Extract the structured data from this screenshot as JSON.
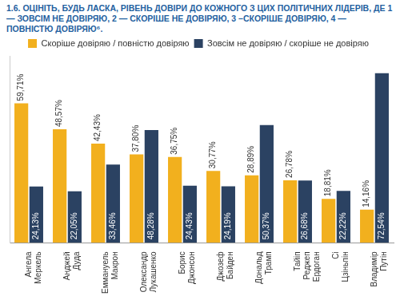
{
  "chart_data": {
    "type": "bar",
    "title": "1.6. ОЦІНІТЬ, БУДЬ ЛАСКА, РІВЕНЬ ДОВІРИ ДО КОЖНОГО З ЦИХ ПОЛІТИЧНИХ ЛІДЕРІВ, ДЕ 1 — ЗОВСІМ НЕ ДОВІРЯЮ, 2 — СКОРІШЕ НЕ ДОВІРЯЮ, 3 –СКОРІШЕ ДОВІРЯЮ, 4 — ПОВНІСТЮ ДОВІРЯЮ⁶.",
    "categories": [
      "Ангела Меркель",
      "Анджей Дуда",
      "Еммануель Макрон",
      "Олександр Лукашенко",
      "Борис Джонсон",
      "Джозеф Байден",
      "Дональд Трамп",
      "Тайіп Реджеп Ердоган",
      "Сі Цзіньпін",
      "Владимір Путін"
    ],
    "series": [
      {
        "name": "Скоріше довіряю / повністю довіряю",
        "color": "#f2b01e",
        "values": [
          59.71,
          48.57,
          42.43,
          37.8,
          36.75,
          30.77,
          28.89,
          26.78,
          18.81,
          14.16
        ],
        "value_labels": [
          "59,71%",
          "48,57%",
          "42,43%",
          "37,80%",
          "36,75%",
          "30,77%",
          "28,89%",
          "26,78%",
          "18,81%",
          "14,16%"
        ]
      },
      {
        "name": "Зовсім не довіряю / скоріше не довіряю",
        "color": "#2b4262",
        "values": [
          24.13,
          22.05,
          33.46,
          48.28,
          24.43,
          24.19,
          50.37,
          26.68,
          22.22,
          72.54
        ],
        "value_labels": [
          "24,13%",
          "22,05%",
          "33,46%",
          "48,28%",
          "24,43%",
          "24,19%",
          "50,37%",
          "26,68%",
          "22,22%",
          "72,54%"
        ]
      }
    ],
    "ylim": [
      0,
      80
    ],
    "grid": false,
    "legend": "top",
    "data_labels": true,
    "tick_labels": "x"
  }
}
